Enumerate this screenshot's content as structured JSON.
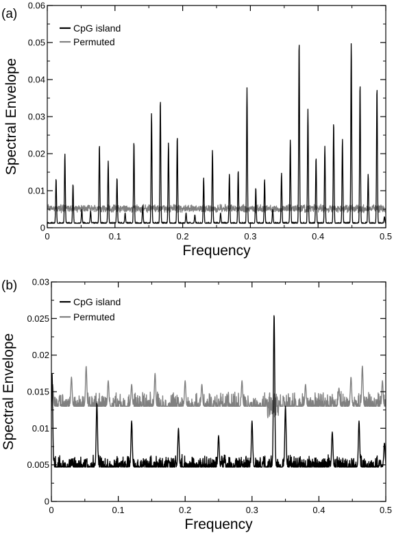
{
  "chart_data": [
    {
      "panel_label": "(a)",
      "panel_letter": "a",
      "type": "line",
      "xlabel": "Frequency",
      "ylabel": "Spectral Envelope",
      "xlim": [
        0,
        0.5
      ],
      "ylim": [
        0,
        0.06
      ],
      "xticks": [
        "0",
        "0.1",
        "0.2",
        "0.3",
        "0.4",
        "0.5"
      ],
      "yticks": [
        "0",
        "0.01",
        "0.02",
        "0.03",
        "0.04",
        "0.05",
        "0.06"
      ],
      "grid": false,
      "legend_position": "top-left",
      "series": [
        {
          "name": "CpG island",
          "color": "#000000",
          "baseline": 0.0012,
          "peaks": [
            [
              0.013,
              0.0133
            ],
            [
              0.026,
              0.02
            ],
            [
              0.038,
              0.0118
            ],
            [
              0.051,
              0.005
            ],
            [
              0.064,
              0.0045
            ],
            [
              0.077,
              0.0225
            ],
            [
              0.09,
              0.018
            ],
            [
              0.103,
              0.0135
            ],
            [
              0.115,
              0.004
            ],
            [
              0.128,
              0.0233
            ],
            [
              0.141,
              0.006
            ],
            [
              0.154,
              0.031
            ],
            [
              0.167,
              0.0347
            ],
            [
              0.179,
              0.023
            ],
            [
              0.192,
              0.0247
            ],
            [
              0.205,
              0.004
            ],
            [
              0.218,
              0.0035
            ],
            [
              0.231,
              0.0135
            ],
            [
              0.244,
              0.021
            ],
            [
              0.256,
              0.004
            ],
            [
              0.269,
              0.0145
            ],
            [
              0.282,
              0.0155
            ],
            [
              0.295,
              0.0378
            ],
            [
              0.308,
              0.0108
            ],
            [
              0.321,
              0.013
            ],
            [
              0.333,
              0.005
            ],
            [
              0.346,
              0.0148
            ],
            [
              0.359,
              0.0238
            ],
            [
              0.372,
              0.0505
            ],
            [
              0.385,
              0.032
            ],
            [
              0.397,
              0.019
            ],
            [
              0.41,
              0.022
            ],
            [
              0.423,
              0.0285
            ],
            [
              0.436,
              0.024
            ],
            [
              0.449,
              0.05
            ],
            [
              0.462,
              0.039
            ],
            [
              0.474,
              0.0145
            ],
            [
              0.487,
              0.038
            ],
            [
              0.498,
              0.003
            ]
          ]
        },
        {
          "name": "Permuted",
          "color": "#808080",
          "baseline": 0.0052,
          "noise": 0.0008
        }
      ]
    },
    {
      "panel_label": "(b)",
      "panel_letter": "b",
      "type": "line",
      "xlabel": "Frequency",
      "ylabel": "Spectral Envelope",
      "xlim": [
        0,
        0.5
      ],
      "ylim": [
        0,
        0.03
      ],
      "xticks": [
        "0",
        "0.1",
        "0.2",
        "0.3",
        "0.4",
        "0.5"
      ],
      "yticks": [
        "0",
        "0.005",
        "0.01",
        "0.015",
        "0.02",
        "0.025",
        "0.03"
      ],
      "grid": false,
      "legend_position": "top-left",
      "series": [
        {
          "name": "CpG island",
          "color": "#000000",
          "baseline": 0.0047,
          "noise": 0.0012,
          "peaks": [
            [
              0.001,
              0.0175
            ],
            [
              0.068,
              0.0135
            ],
            [
              0.12,
              0.011
            ],
            [
              0.19,
              0.01
            ],
            [
              0.25,
              0.009
            ],
            [
              0.3,
              0.011
            ],
            [
              0.333,
              0.0256
            ],
            [
              0.35,
              0.013
            ],
            [
              0.42,
              0.0095
            ],
            [
              0.46,
              0.011
            ],
            [
              0.498,
              0.008
            ]
          ]
        },
        {
          "name": "Permuted",
          "color": "#808080",
          "baseline": 0.013,
          "noise": 0.0014,
          "peaks": [
            [
              0.002,
              0.016
            ],
            [
              0.03,
              0.017
            ],
            [
              0.052,
              0.0185
            ],
            [
              0.085,
              0.0165
            ],
            [
              0.12,
              0.016
            ],
            [
              0.155,
              0.0175
            ],
            [
              0.2,
              0.0165
            ],
            [
              0.225,
              0.016
            ],
            [
              0.285,
              0.0165
            ],
            [
              0.38,
              0.016
            ],
            [
              0.43,
              0.0155
            ],
            [
              0.448,
              0.017
            ],
            [
              0.465,
              0.0185
            ],
            [
              0.495,
              0.0165
            ]
          ]
        }
      ]
    }
  ]
}
